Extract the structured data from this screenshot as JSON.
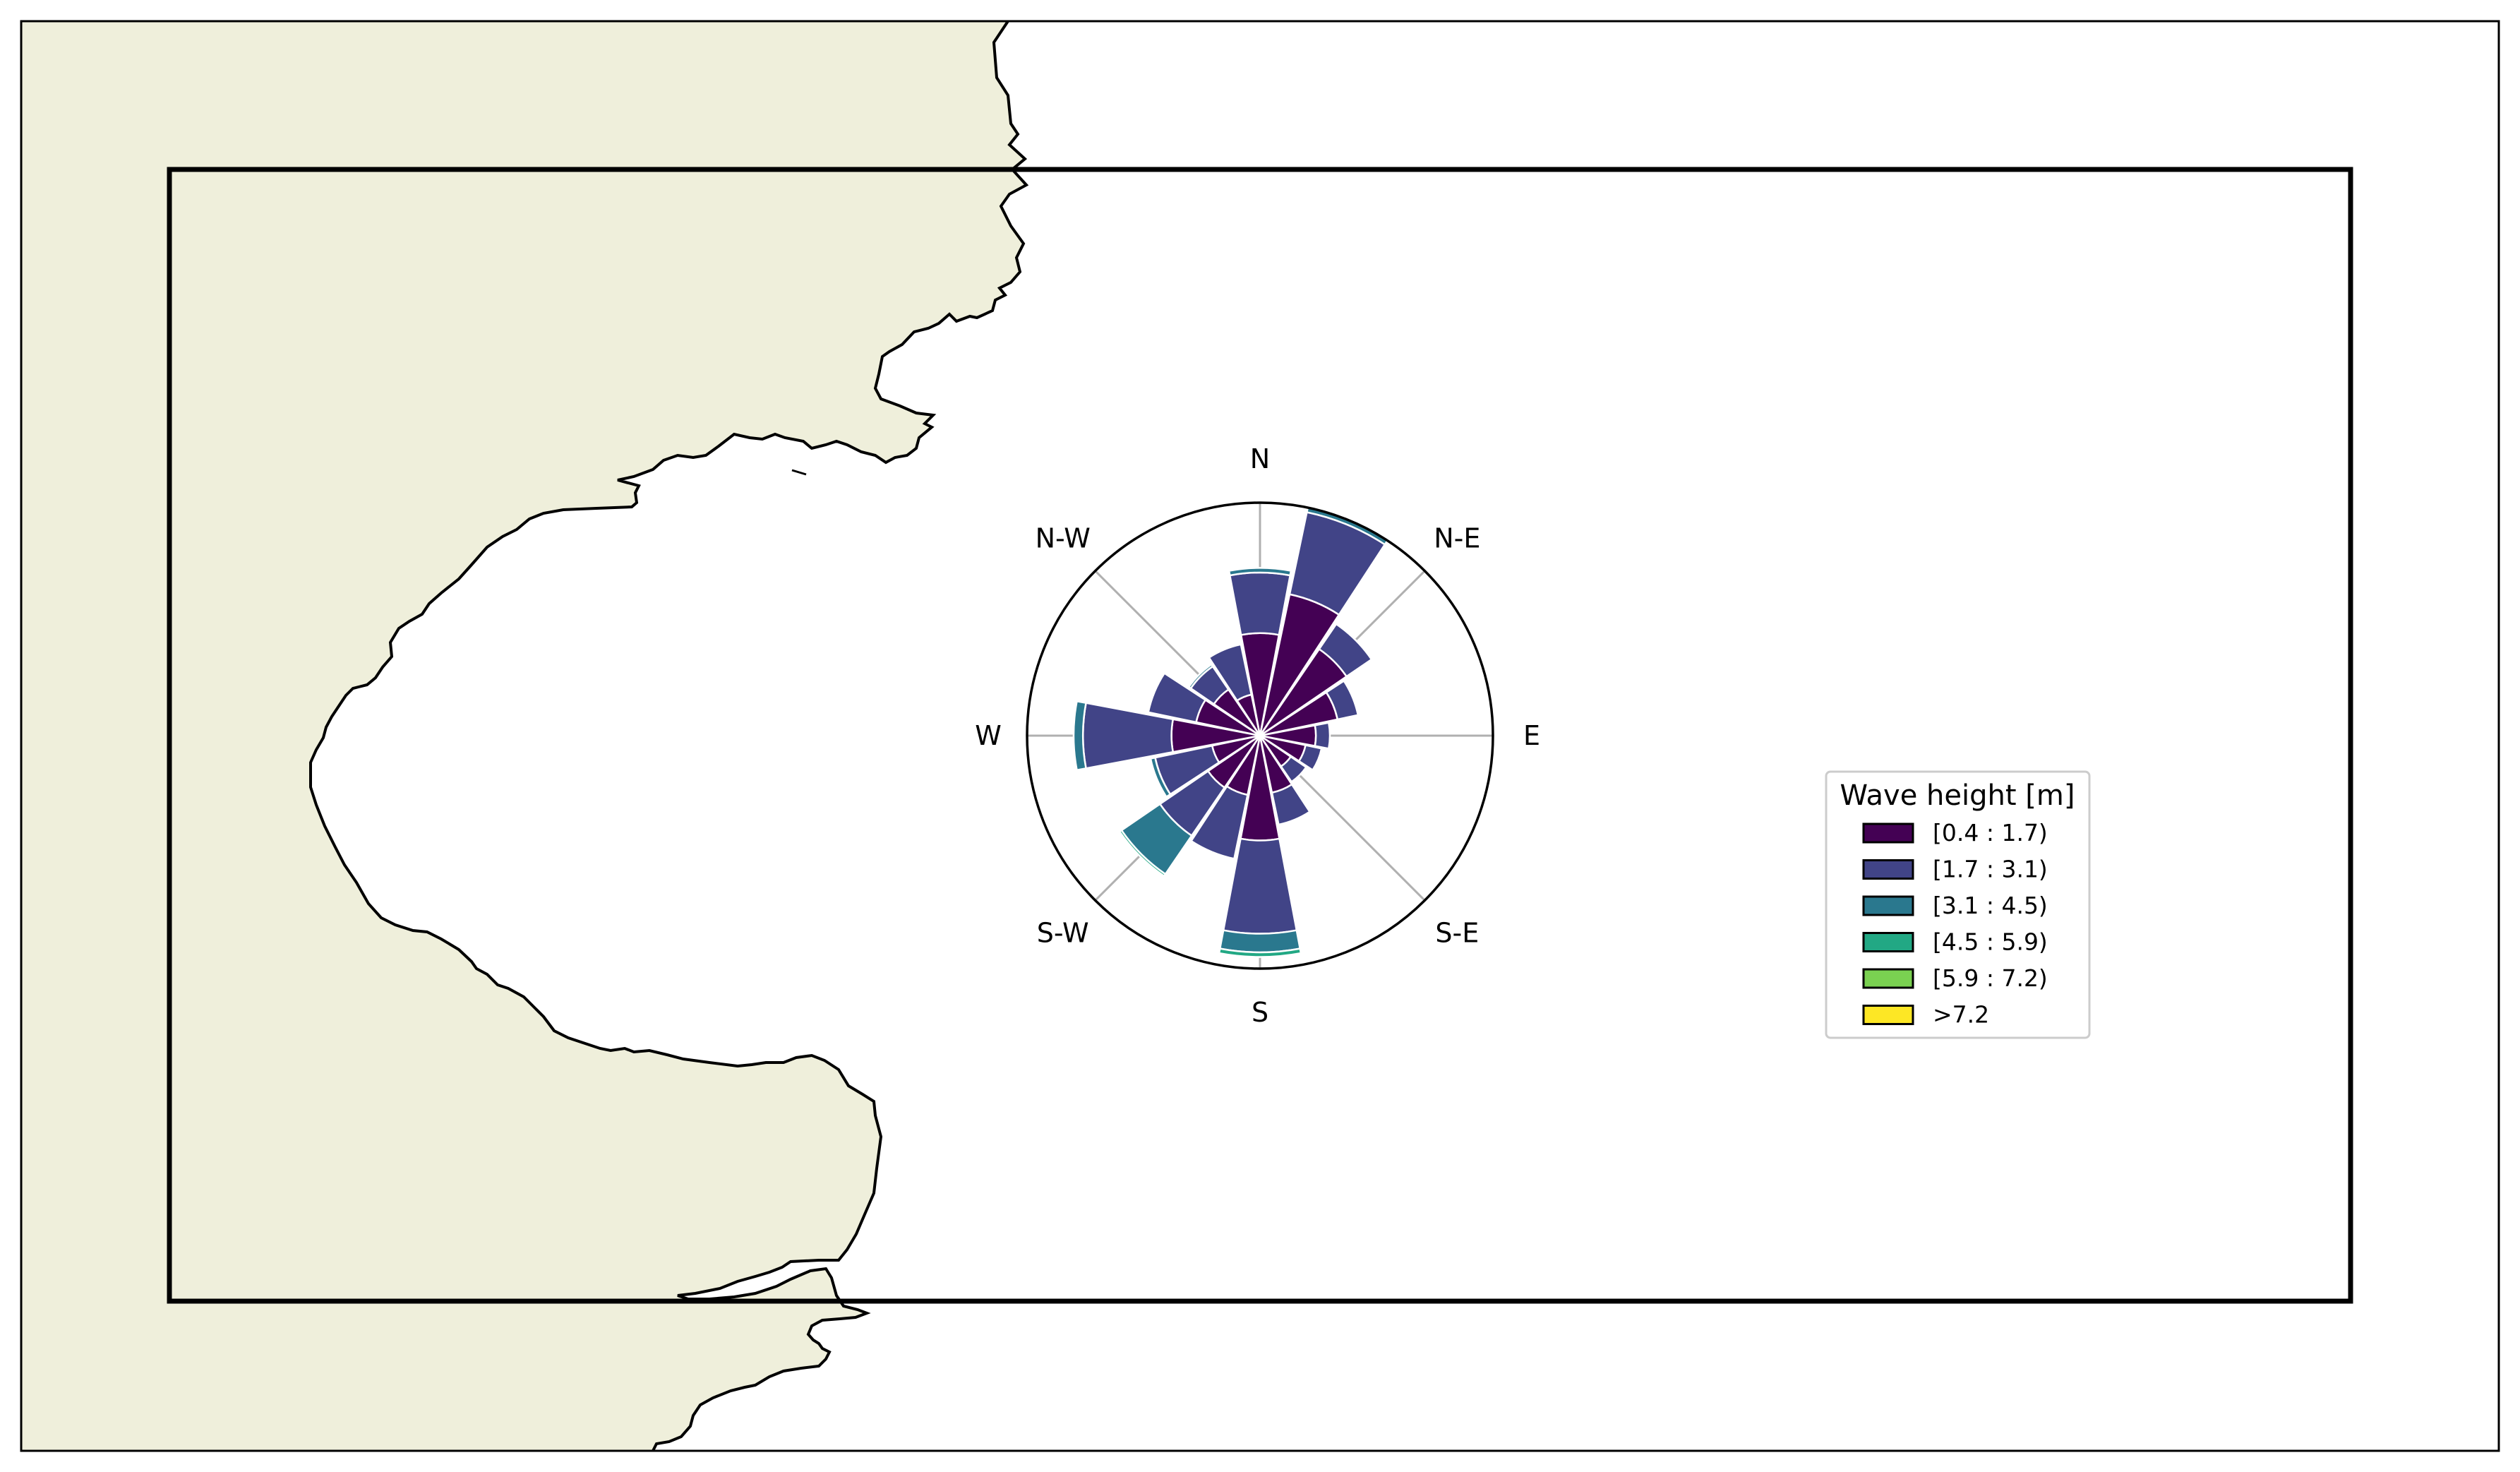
{
  "figure": {
    "land_color": "#efefdb",
    "sea_color": "#ffffff"
  },
  "chart_data": {
    "type": "windrose",
    "directions": [
      "N",
      "N-E",
      "E",
      "S-E",
      "S",
      "S-W",
      "W",
      "N-W"
    ],
    "sector_count": 16,
    "sector_angles_deg": [
      0,
      22.5,
      45,
      67.5,
      90,
      112.5,
      135,
      157.5,
      180,
      202.5,
      225,
      247.5,
      270,
      292.5,
      315,
      337.5
    ],
    "grid": true,
    "legend": {
      "title": "Wave height [m]",
      "placement": "right",
      "bins": [
        {
          "label": "[0.4 : 1.7)",
          "color": "#440154"
        },
        {
          "label": "[1.7 : 3.1)",
          "color": "#414487"
        },
        {
          "label": "[3.1 : 4.5)",
          "color": "#2a788e"
        },
        {
          "label": "[4.5 : 5.9)",
          "color": "#22a884"
        },
        {
          "label": "[5.9 : 7.2)",
          "color": "#7ad151"
        },
        {
          "label": ">7.2",
          "color": "#fde725"
        }
      ]
    },
    "sectors_relative_radius": [
      [
        0.44,
        0.7,
        0.72,
        0.72,
        0.72,
        0.72
      ],
      [
        0.62,
        0.98,
        1.0,
        1.0,
        1.0,
        1.0
      ],
      [
        0.45,
        0.58,
        0.58,
        0.58,
        0.58,
        0.58
      ],
      [
        0.34,
        0.43,
        0.43,
        0.43,
        0.43,
        0.43
      ],
      [
        0.24,
        0.3,
        0.3,
        0.3,
        0.3,
        0.3
      ],
      [
        0.2,
        0.27,
        0.27,
        0.27,
        0.27,
        0.27
      ],
      [
        0.16,
        0.24,
        0.24,
        0.24,
        0.24,
        0.24
      ],
      [
        0.25,
        0.39,
        0.39,
        0.39,
        0.39,
        0.39
      ],
      [
        0.45,
        0.85,
        0.93,
        0.95,
        0.95,
        0.95
      ],
      [
        0.26,
        0.54,
        0.54,
        0.54,
        0.54,
        0.54
      ],
      [
        0.27,
        0.52,
        0.72,
        0.73,
        0.73,
        0.73
      ],
      [
        0.21,
        0.46,
        0.48,
        0.48,
        0.48,
        0.48
      ],
      [
        0.38,
        0.76,
        0.8,
        0.8,
        0.8,
        0.8
      ],
      [
        0.28,
        0.49,
        0.49,
        0.49,
        0.49,
        0.49
      ],
      [
        0.24,
        0.36,
        0.37,
        0.37,
        0.37,
        0.37
      ],
      [
        0.18,
        0.4,
        0.4,
        0.4,
        0.4,
        0.4
      ]
    ]
  }
}
